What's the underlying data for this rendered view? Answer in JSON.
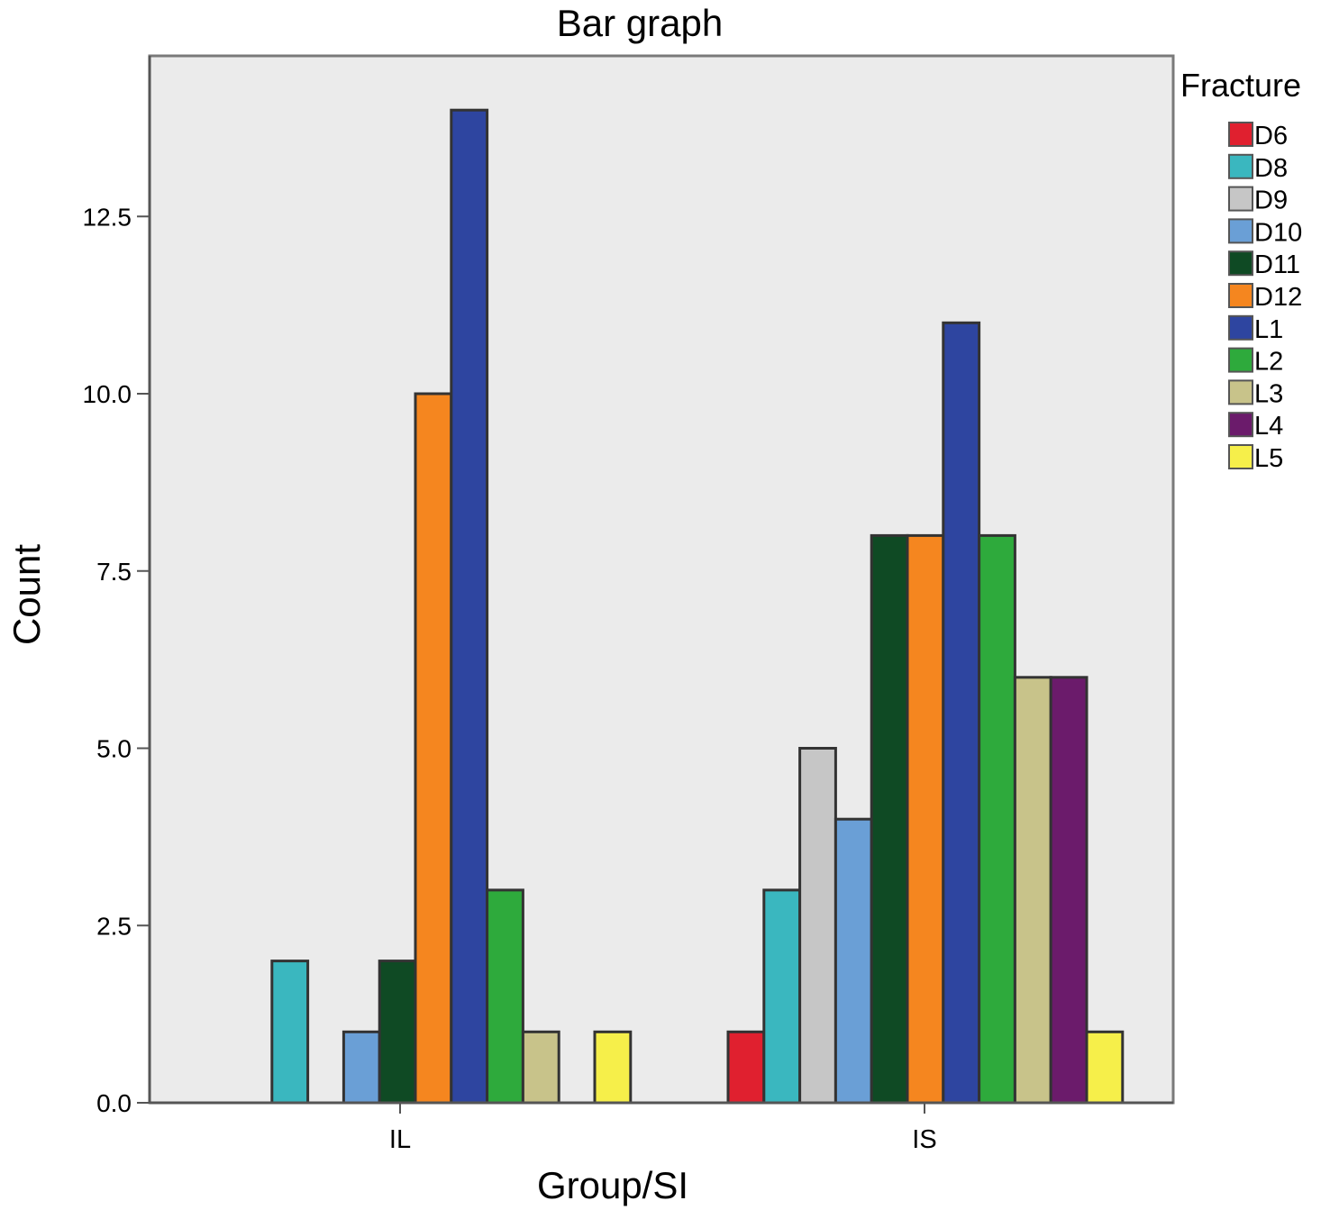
{
  "chart_data": {
    "type": "bar",
    "title": "Bar graph",
    "xlabel": "Group/SI",
    "ylabel": "Count",
    "ylim": [
      0,
      14
    ],
    "yticks": [
      "0.0",
      "2.5",
      "5.0",
      "7.5",
      "10.0",
      "12.5"
    ],
    "ytick_values": [
      0,
      2.5,
      5,
      7.5,
      10,
      12.5
    ],
    "categories": [
      "IL",
      "IS"
    ],
    "legend_title": "Fracture",
    "legend_position": "top-right",
    "grid": false,
    "series": [
      {
        "name": "D6",
        "color": "#e0202f",
        "values": [
          0,
          1
        ]
      },
      {
        "name": "D8",
        "color": "#3ab7bf",
        "values": [
          2,
          3
        ]
      },
      {
        "name": "D9",
        "color": "#c6c6c6",
        "values": [
          0,
          5
        ]
      },
      {
        "name": "D10",
        "color": "#6a9fd6",
        "values": [
          1,
          4
        ]
      },
      {
        "name": "D11",
        "color": "#0f4a24",
        "values": [
          2,
          8
        ]
      },
      {
        "name": "D12",
        "color": "#f5861f",
        "values": [
          10,
          8
        ]
      },
      {
        "name": "L1",
        "color": "#2e45a0",
        "values": [
          14,
          11
        ]
      },
      {
        "name": "L2",
        "color": "#2eaa3c",
        "values": [
          3,
          8
        ]
      },
      {
        "name": "L3",
        "color": "#c8c38a",
        "values": [
          1,
          6
        ]
      },
      {
        "name": "L4",
        "color": "#6b1b6b",
        "values": [
          0,
          6
        ]
      },
      {
        "name": "L5",
        "color": "#f6ef4a",
        "values": [
          1,
          1
        ]
      }
    ]
  }
}
